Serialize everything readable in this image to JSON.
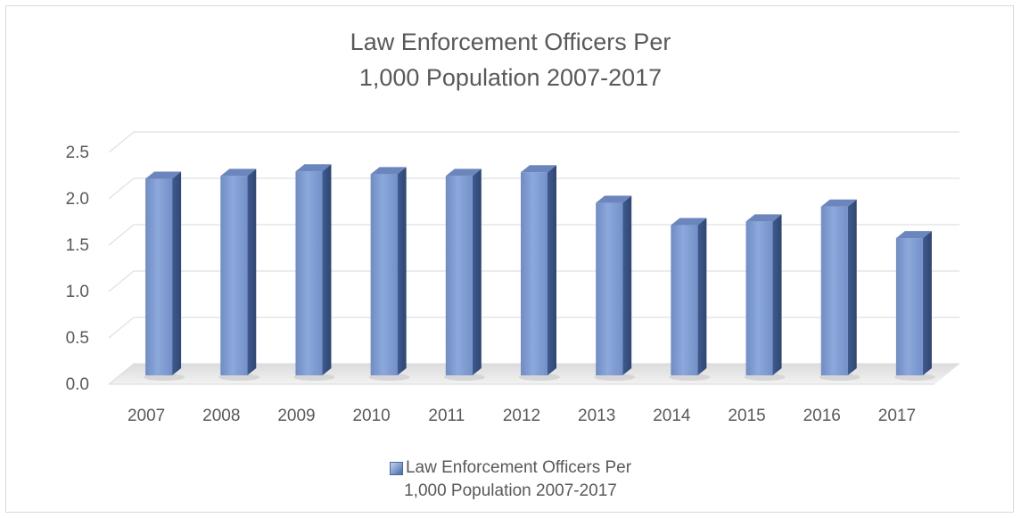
{
  "chart_data": {
    "type": "bar",
    "title_lines": [
      "Law Enforcement Officers Per",
      "1,000 Population 2007-2017"
    ],
    "categories": [
      "2007",
      "2008",
      "2009",
      "2010",
      "2011",
      "2012",
      "2013",
      "2014",
      "2015",
      "2016",
      "2017"
    ],
    "series": [
      {
        "name": "Law Enforcement Officers Per 1,000 Population 2007-2017",
        "values": [
          2.12,
          2.15,
          2.2,
          2.17,
          2.15,
          2.19,
          1.86,
          1.62,
          1.66,
          1.82,
          1.48
        ]
      }
    ],
    "y_ticks": [
      "0.0",
      "0.5",
      "1.0",
      "1.5",
      "2.0",
      "2.5"
    ],
    "ylim": [
      0,
      2.5
    ],
    "grid": true,
    "legend_position": "bottom",
    "bar_color": "#7f9dd3",
    "bar_side_color": "#3f5b8f",
    "bar_top_color": "#6b86bd",
    "grid_color": "#d9d9d9",
    "text_color": "#595959"
  },
  "legend": {
    "line1": "Law Enforcement Officers Per",
    "line2": "1,000 Population 2007-2017"
  }
}
